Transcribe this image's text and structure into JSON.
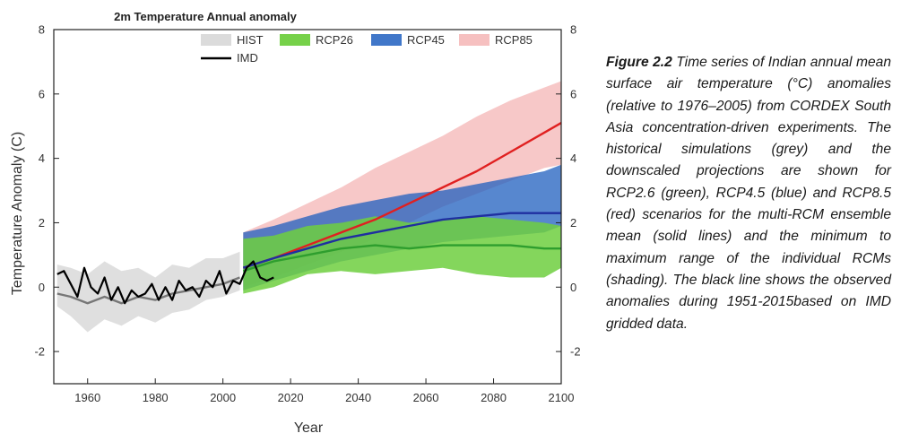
{
  "caption": {
    "lead": "Figure 2.2",
    "body": "Time series of Indian annual mean surface air temperature (°C) anomalies (relative to 1976–2005) from CORDEX South Asia concentration-driven experiments. The historical simulations (grey) and the downscaled projections are shown for RCP2.6 (green), RCP4.5 (blue) and RCP8.5 (red) scenarios for the multi-RCM ensemble mean (solid lines) and the minimum to maximum range of the individual RCMs (shading). The black line shows the observed anomalies during 1951-2015based on IMD gridded data."
  },
  "chart_data": {
    "type": "line",
    "title": "2m Temperature Annual anomaly",
    "xlabel": "Year",
    "ylabel": "Temperature Anomaly (C)",
    "xlim": [
      1950,
      2100
    ],
    "ylim": [
      -3,
      8
    ],
    "x_ticks": [
      1960,
      1980,
      2000,
      2020,
      2040,
      2060,
      2080,
      2100
    ],
    "y_ticks": [
      -2,
      0,
      2,
      4,
      6,
      8
    ],
    "right_y_ticks": [
      -2,
      0,
      2,
      4,
      6,
      8
    ],
    "legend_position": "top",
    "grid": false,
    "colors": {
      "hist_fill": "#d9d9d9",
      "hist_line": "#777777",
      "rcp26_fill": "#6fcf3f",
      "rcp26_line": "#2e9e2e",
      "rcp45_fill": "#1f5fbf",
      "rcp45_line": "#1f2fa0",
      "rcp85_fill": "#f4b5b5",
      "rcp85_line": "#e02020",
      "imd_line": "#000000"
    },
    "series": [
      {
        "name": "HIST",
        "kind": "band",
        "x": [
          1951,
          1955,
          1960,
          1965,
          1970,
          1975,
          1980,
          1985,
          1990,
          1995,
          2000,
          2005
        ],
        "min": [
          -0.6,
          -0.9,
          -1.4,
          -1.0,
          -1.2,
          -0.9,
          -1.1,
          -0.8,
          -0.7,
          -0.4,
          -0.3,
          -0.1
        ],
        "max": [
          0.7,
          0.6,
          0.4,
          0.8,
          0.5,
          0.6,
          0.3,
          0.7,
          0.6,
          0.9,
          0.9,
          1.1
        ],
        "mean": [
          -0.2,
          -0.3,
          -0.5,
          -0.3,
          -0.5,
          -0.3,
          -0.4,
          -0.2,
          -0.1,
          0.0,
          0.1,
          0.3
        ]
      },
      {
        "name": "RCP26",
        "kind": "band",
        "x": [
          2006,
          2015,
          2025,
          2035,
          2045,
          2055,
          2065,
          2075,
          2085,
          2095,
          2100
        ],
        "min": [
          -0.2,
          0.0,
          0.4,
          0.5,
          0.4,
          0.5,
          0.6,
          0.4,
          0.3,
          0.3,
          0.6
        ],
        "max": [
          1.5,
          1.6,
          1.9,
          2.0,
          2.2,
          2.0,
          2.1,
          2.2,
          2.1,
          2.0,
          1.9
        ],
        "mean": [
          0.5,
          0.8,
          1.0,
          1.2,
          1.3,
          1.2,
          1.3,
          1.3,
          1.3,
          1.2,
          1.2
        ]
      },
      {
        "name": "RCP45",
        "kind": "band",
        "x": [
          2006,
          2015,
          2025,
          2035,
          2045,
          2055,
          2065,
          2075,
          2085,
          2095,
          2100
        ],
        "min": [
          -0.1,
          0.2,
          0.5,
          0.8,
          1.0,
          1.2,
          1.4,
          1.5,
          1.6,
          1.7,
          1.9
        ],
        "max": [
          1.7,
          1.9,
          2.2,
          2.5,
          2.7,
          2.9,
          3.0,
          3.2,
          3.4,
          3.6,
          3.8
        ],
        "mean": [
          0.6,
          0.9,
          1.2,
          1.5,
          1.7,
          1.9,
          2.1,
          2.2,
          2.3,
          2.3,
          2.3
        ]
      },
      {
        "name": "RCP85",
        "kind": "band",
        "x": [
          2006,
          2015,
          2025,
          2035,
          2045,
          2055,
          2065,
          2075,
          2085,
          2095,
          2100
        ],
        "min": [
          0.0,
          0.3,
          0.7,
          1.1,
          1.5,
          2.0,
          2.5,
          2.9,
          3.3,
          3.7,
          3.8
        ],
        "max": [
          1.7,
          2.1,
          2.6,
          3.1,
          3.7,
          4.2,
          4.7,
          5.3,
          5.8,
          6.2,
          6.4
        ],
        "mean": [
          0.6,
          0.9,
          1.3,
          1.7,
          2.1,
          2.6,
          3.1,
          3.6,
          4.2,
          4.8,
          5.1
        ]
      },
      {
        "name": "IMD",
        "kind": "line",
        "x": [
          1951,
          1953,
          1955,
          1957,
          1959,
          1961,
          1963,
          1965,
          1967,
          1969,
          1971,
          1973,
          1975,
          1977,
          1979,
          1981,
          1983,
          1985,
          1987,
          1989,
          1991,
          1993,
          1995,
          1997,
          1999,
          2001,
          2003,
          2005,
          2007,
          2009,
          2011,
          2013,
          2015
        ],
        "y": [
          0.4,
          0.5,
          0.1,
          -0.3,
          0.6,
          0.0,
          -0.2,
          0.3,
          -0.4,
          0.0,
          -0.5,
          -0.1,
          -0.3,
          -0.2,
          0.1,
          -0.4,
          0.0,
          -0.4,
          0.2,
          -0.1,
          0.0,
          -0.3,
          0.2,
          0.0,
          0.5,
          -0.2,
          0.2,
          0.1,
          0.6,
          0.8,
          0.3,
          0.2,
          0.3
        ]
      }
    ]
  }
}
